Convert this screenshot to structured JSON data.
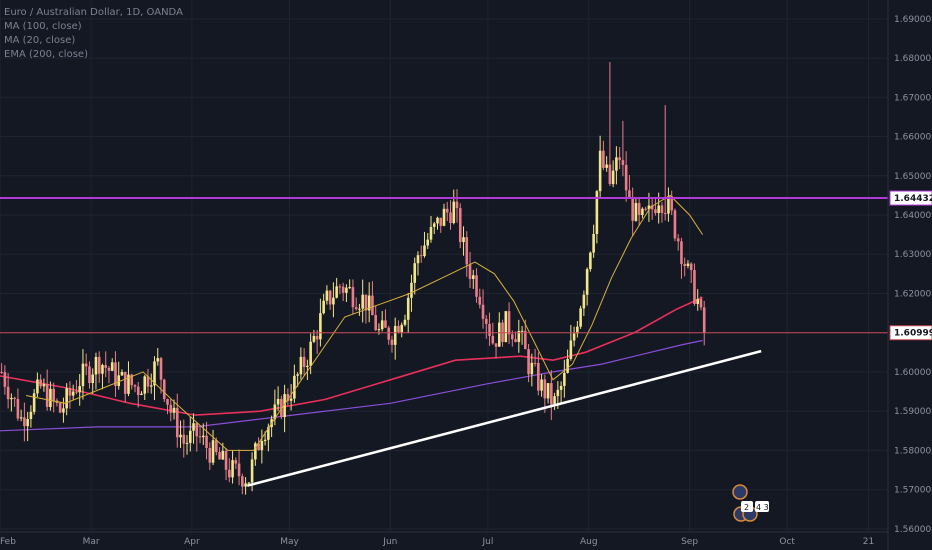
{
  "header": {
    "symbol_line": "Euro / Australian Dollar, 1D, OANDA",
    "indicators": [
      "MA (100, close)",
      "MA (20, close)",
      "EMA (200, close)"
    ]
  },
  "colors": {
    "background": "#141823",
    "grid": "#1f2433",
    "up_candle": "#f2e68a",
    "down_candle": "#e87e8a",
    "ma20": "#d8b23a",
    "ma100": "#e8305a",
    "ema200": "#8a4fd8",
    "resistance": "#b03ad8",
    "support": "#c94a55",
    "trendline": "#ffffff"
  },
  "chart_data": {
    "type": "candlestick",
    "title": "Euro / Australian Dollar, 1D, OANDA",
    "ylim": [
      1.5592,
      1.6948
    ],
    "y_ticks": [
      "1.69000",
      "1.68000",
      "1.67000",
      "1.66000",
      "1.65000",
      "1.64000",
      "1.63000",
      "1.62000",
      "1.61000",
      "1.60000",
      "1.59000",
      "1.58000",
      "1.57000",
      "1.56000"
    ],
    "x_ticks": [
      "Feb",
      "Mar",
      "Apr",
      "May",
      "Jun",
      "Jul",
      "Aug",
      "Sep",
      "Oct",
      "21"
    ],
    "x_tick_days": [
      0,
      28,
      59,
      89,
      120,
      150,
      181,
      212,
      242,
      267
    ],
    "xlim_days": [
      0,
      273
    ],
    "price_lines": [
      {
        "name": "resistance",
        "value": 1.64432,
        "label": "1.64432"
      },
      {
        "name": "current",
        "value": 1.60999,
        "label": "1.60999"
      }
    ],
    "trendline": {
      "from": {
        "day": 76,
        "value": 1.571
      },
      "to": {
        "day": 234,
        "value": 1.6053
      }
    },
    "anchors": [
      [
        0,
        1.6
      ],
      [
        6,
        1.588
      ],
      [
        12,
        1.596
      ],
      [
        18,
        1.59
      ],
      [
        24,
        1.598
      ],
      [
        30,
        1.603
      ],
      [
        36,
        1.598
      ],
      [
        42,
        1.596
      ],
      [
        48,
        1.602
      ],
      [
        52,
        1.59
      ],
      [
        56,
        1.582
      ],
      [
        60,
        1.584
      ],
      [
        64,
        1.58
      ],
      [
        70,
        1.575
      ],
      [
        76,
        1.573
      ],
      [
        80,
        1.585
      ],
      [
        85,
        1.59
      ],
      [
        90,
        1.597
      ],
      [
        95,
        1.606
      ],
      [
        100,
        1.618
      ],
      [
        104,
        1.622
      ],
      [
        108,
        1.62
      ],
      [
        112,
        1.618
      ],
      [
        116,
        1.61
      ],
      [
        120,
        1.61
      ],
      [
        124,
        1.616
      ],
      [
        128,
        1.63
      ],
      [
        132,
        1.635
      ],
      [
        136,
        1.64
      ],
      [
        139,
        1.642
      ],
      [
        143,
        1.628
      ],
      [
        147,
        1.62
      ],
      [
        151,
        1.608
      ],
      [
        155,
        1.612
      ],
      [
        159,
        1.61
      ],
      [
        162,
        1.602
      ],
      [
        166,
        1.596
      ],
      [
        170,
        1.592
      ],
      [
        173,
        1.598
      ],
      [
        176,
        1.61
      ],
      [
        179,
        1.622
      ],
      [
        182,
        1.638
      ],
      [
        184,
        1.654
      ],
      [
        187,
        1.648
      ],
      [
        190,
        1.655
      ],
      [
        193,
        1.643
      ],
      [
        196,
        1.638
      ],
      [
        199,
        1.64
      ],
      [
        202,
        1.645
      ],
      [
        205,
        1.642
      ],
      [
        208,
        1.634
      ],
      [
        211,
        1.625
      ],
      [
        214,
        1.618
      ],
      [
        216,
        1.609
      ]
    ],
    "ma20_points": [
      [
        8,
        1.594
      ],
      [
        20,
        1.592
      ],
      [
        32,
        1.596
      ],
      [
        44,
        1.6
      ],
      [
        54,
        1.592
      ],
      [
        62,
        1.586
      ],
      [
        70,
        1.58
      ],
      [
        78,
        1.58
      ],
      [
        86,
        1.59
      ],
      [
        96,
        1.602
      ],
      [
        106,
        1.614
      ],
      [
        116,
        1.617
      ],
      [
        126,
        1.62
      ],
      [
        136,
        1.624
      ],
      [
        146,
        1.628
      ],
      [
        152,
        1.625
      ],
      [
        158,
        1.618
      ],
      [
        164,
        1.608
      ],
      [
        170,
        1.598
      ],
      [
        176,
        1.602
      ],
      [
        182,
        1.612
      ],
      [
        188,
        1.624
      ],
      [
        194,
        1.634
      ],
      [
        200,
        1.642
      ],
      [
        206,
        1.645
      ],
      [
        212,
        1.64
      ],
      [
        216,
        1.635
      ]
    ],
    "ma100_points": [
      [
        0,
        1.599
      ],
      [
        20,
        1.596
      ],
      [
        40,
        1.592
      ],
      [
        60,
        1.589
      ],
      [
        80,
        1.59
      ],
      [
        100,
        1.593
      ],
      [
        120,
        1.598
      ],
      [
        140,
        1.603
      ],
      [
        160,
        1.604
      ],
      [
        170,
        1.603
      ],
      [
        180,
        1.605
      ],
      [
        195,
        1.61
      ],
      [
        208,
        1.616
      ],
      [
        216,
        1.619
      ]
    ],
    "ema200_points": [
      [
        0,
        1.585
      ],
      [
        30,
        1.586
      ],
      [
        60,
        1.586
      ],
      [
        90,
        1.589
      ],
      [
        120,
        1.592
      ],
      [
        150,
        1.597
      ],
      [
        170,
        1.6
      ],
      [
        185,
        1.602
      ],
      [
        200,
        1.605
      ],
      [
        210,
        1.607
      ],
      [
        216,
        1.608
      ]
    ]
  },
  "watermark": {
    "badges": [
      "2",
      "4 3"
    ]
  }
}
